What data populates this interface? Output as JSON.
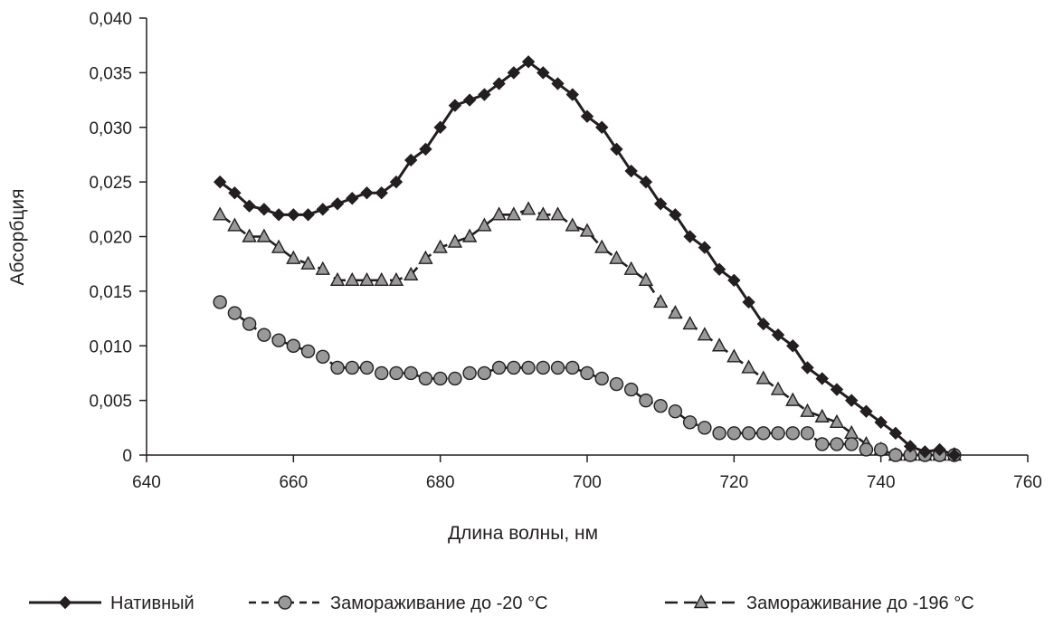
{
  "chart_data": {
    "type": "line",
    "title": "",
    "xlabel": "Длина волны, нм",
    "ylabel": "Абсорбция",
    "xlim": [
      640,
      760
    ],
    "ylim": [
      0,
      0.04
    ],
    "x_ticks": [
      640,
      660,
      680,
      700,
      720,
      740,
      760
    ],
    "y_ticks": [
      0,
      0.005,
      0.01,
      0.015,
      0.02,
      0.025,
      0.03,
      0.035,
      0.04
    ],
    "x_tick_labels": [
      "640",
      "660",
      "680",
      "700",
      "720",
      "740",
      "760"
    ],
    "y_tick_labels": [
      "0",
      "0,005",
      "0,010",
      "0,015",
      "0,020",
      "0,025",
      "0,030",
      "0,035",
      "0,040"
    ],
    "grid": false,
    "legend_position": "bottom",
    "x": [
      650,
      652,
      654,
      656,
      658,
      660,
      662,
      664,
      666,
      668,
      670,
      672,
      674,
      676,
      678,
      680,
      682,
      684,
      686,
      688,
      690,
      692,
      694,
      696,
      698,
      700,
      702,
      704,
      706,
      708,
      710,
      712,
      714,
      716,
      718,
      720,
      722,
      724,
      726,
      728,
      730,
      732,
      734,
      736,
      738,
      740,
      742,
      744,
      746,
      748,
      750
    ],
    "series": [
      {
        "name": "Нативный",
        "marker": "diamond",
        "line": "solid",
        "color": "#231f20",
        "values": [
          0.025,
          0.024,
          0.0228,
          0.0225,
          0.022,
          0.022,
          0.022,
          0.0225,
          0.023,
          0.0235,
          0.024,
          0.024,
          0.025,
          0.027,
          0.028,
          0.03,
          0.032,
          0.0325,
          0.033,
          0.034,
          0.035,
          0.036,
          0.035,
          0.034,
          0.033,
          0.031,
          0.03,
          0.028,
          0.026,
          0.025,
          0.023,
          0.022,
          0.02,
          0.019,
          0.017,
          0.016,
          0.014,
          0.012,
          0.011,
          0.01,
          0.008,
          0.007,
          0.006,
          0.005,
          0.004,
          0.003,
          0.002,
          0.0008,
          0.0003,
          0.0005,
          0.0
        ]
      },
      {
        "name": "Замораживание до -20 °C",
        "marker": "circle",
        "line": "dashed",
        "color": "#999999",
        "values": [
          0.014,
          0.013,
          0.012,
          0.011,
          0.0105,
          0.01,
          0.0095,
          0.009,
          0.008,
          0.008,
          0.008,
          0.0075,
          0.0075,
          0.0075,
          0.007,
          0.007,
          0.007,
          0.0075,
          0.0075,
          0.008,
          0.008,
          0.008,
          0.008,
          0.008,
          0.008,
          0.0075,
          0.007,
          0.0065,
          0.006,
          0.005,
          0.0045,
          0.004,
          0.003,
          0.0025,
          0.002,
          0.002,
          0.002,
          0.002,
          0.002,
          0.002,
          0.002,
          0.001,
          0.001,
          0.001,
          0.0005,
          0.0005,
          0.0,
          0.0,
          0.0,
          0.0,
          0.0
        ]
      },
      {
        "name": "Замораживание до -196 °C",
        "marker": "triangle",
        "line": "long-dash",
        "color": "#999999",
        "values": [
          0.022,
          0.021,
          0.02,
          0.02,
          0.019,
          0.018,
          0.0175,
          0.017,
          0.016,
          0.016,
          0.016,
          0.016,
          0.016,
          0.0165,
          0.018,
          0.019,
          0.0195,
          0.02,
          0.021,
          0.022,
          0.022,
          0.0225,
          0.022,
          0.022,
          0.021,
          0.0205,
          0.019,
          0.018,
          0.017,
          0.016,
          0.014,
          0.013,
          0.012,
          0.011,
          0.01,
          0.009,
          0.008,
          0.007,
          0.006,
          0.005,
          0.004,
          0.0035,
          0.003,
          0.002,
          0.001,
          0.0005,
          0.0,
          0.0,
          0.0,
          0.0,
          0.0
        ]
      }
    ]
  }
}
